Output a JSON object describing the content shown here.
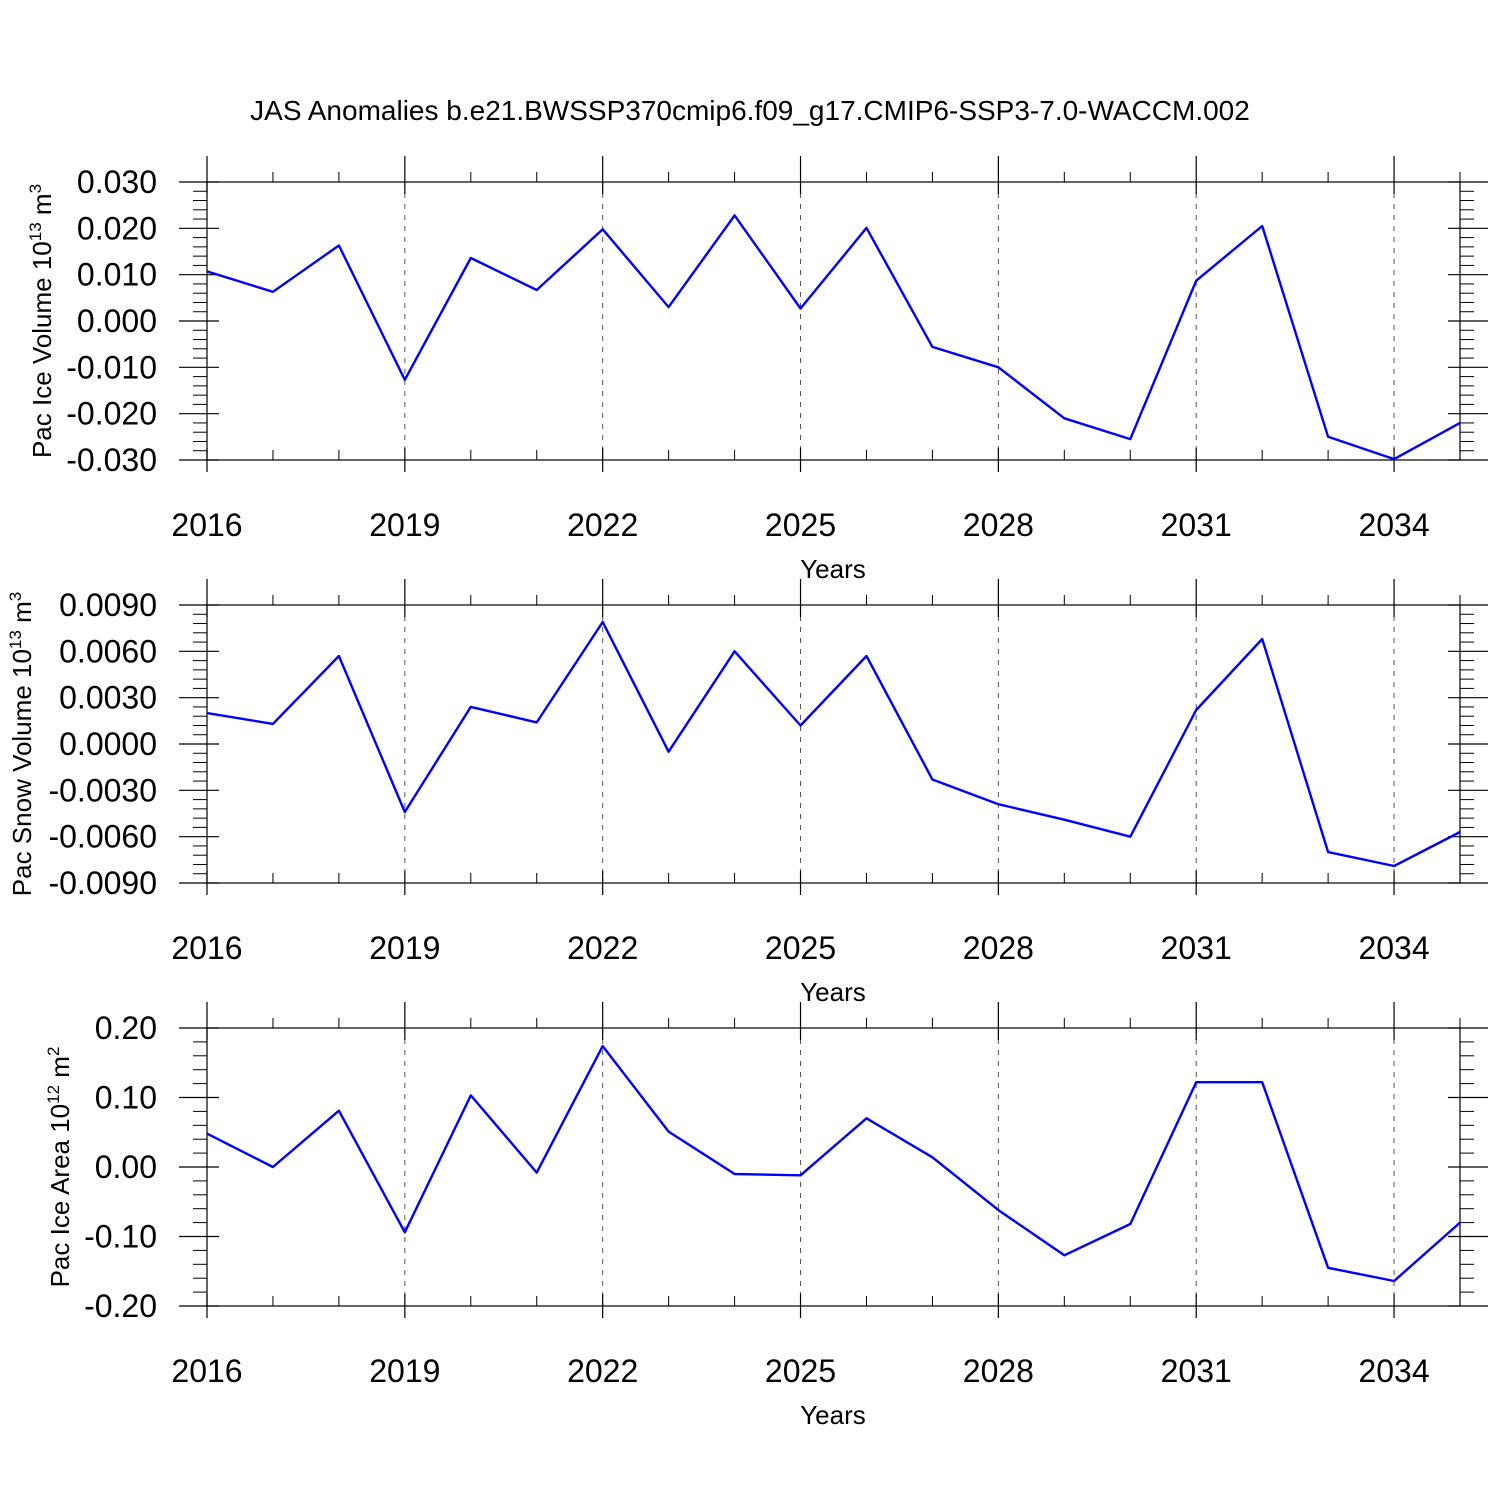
{
  "title": "JAS Anomalies b.e21.BWSSP370cmip6.f09_g17.CMIP6-SSP3-7.0-WACCM.002",
  "line_color": "#0000ff",
  "chart_data": [
    {
      "type": "line",
      "ylabel_main": "Pac Ice Volume 10",
      "ylabel_exp": "13",
      "ylabel_unit": "m",
      "ylabel_unit_exp": "3",
      "xlabel": "Years",
      "xlim": [
        2016,
        2035
      ],
      "ylim": [
        -0.03,
        0.03
      ],
      "grid": "dashed vertical at labeled years",
      "yticks": [
        -0.03,
        -0.02,
        -0.01,
        0.0,
        0.01,
        0.02,
        0.03
      ],
      "ytick_labels": [
        "-0.030",
        "-0.020",
        "-0.010",
        "0.000",
        "0.010",
        "0.020",
        "0.030"
      ],
      "xticks": [
        2016,
        2019,
        2022,
        2025,
        2028,
        2031,
        2034
      ],
      "xtick_labels": [
        "2016",
        "2019",
        "2022",
        "2025",
        "2028",
        "2031",
        "2034"
      ],
      "x": [
        2016,
        2017,
        2018,
        2019,
        2020,
        2021,
        2022,
        2023,
        2024,
        2025,
        2026,
        2027,
        2028,
        2029,
        2030,
        2031,
        2032,
        2033,
        2034,
        2035
      ],
      "values": [
        0.0107,
        0.0063,
        0.0163,
        -0.0127,
        0.0136,
        0.0067,
        0.0198,
        0.003,
        0.0228,
        0.0027,
        0.0201,
        -0.0056,
        -0.01,
        -0.021,
        -0.0255,
        0.0087,
        0.0205,
        -0.025,
        -0.0298,
        -0.022
      ]
    },
    {
      "type": "line",
      "ylabel_main": "Pac Snow Volume 10",
      "ylabel_exp": "13",
      "ylabel_unit": "m",
      "ylabel_unit_exp": "3",
      "xlabel": "Years",
      "xlim": [
        2016,
        2035
      ],
      "ylim": [
        -0.009,
        0.009
      ],
      "grid": "dashed vertical at labeled years",
      "yticks": [
        -0.009,
        -0.006,
        -0.003,
        0.0,
        0.003,
        0.006,
        0.009
      ],
      "ytick_labels": [
        "-0.0090",
        "-0.0060",
        "-0.0030",
        "0.0000",
        "0.0030",
        "0.0060",
        "0.0090"
      ],
      "xticks": [
        2016,
        2019,
        2022,
        2025,
        2028,
        2031,
        2034
      ],
      "xtick_labels": [
        "2016",
        "2019",
        "2022",
        "2025",
        "2028",
        "2031",
        "2034"
      ],
      "x": [
        2016,
        2017,
        2018,
        2019,
        2020,
        2021,
        2022,
        2023,
        2024,
        2025,
        2026,
        2027,
        2028,
        2029,
        2030,
        2031,
        2032,
        2033,
        2034,
        2035
      ],
      "values": [
        0.002,
        0.0013,
        0.0057,
        -0.0044,
        0.0024,
        0.0014,
        0.0079,
        -0.0005,
        0.006,
        0.0012,
        0.0057,
        -0.0023,
        -0.0039,
        -0.0049,
        -0.006,
        0.0022,
        0.0068,
        -0.007,
        -0.0079,
        -0.0057
      ]
    },
    {
      "type": "line",
      "ylabel_main": "Pac Ice Area 10",
      "ylabel_exp": "12",
      "ylabel_unit": "m",
      "ylabel_unit_exp": "2",
      "xlabel": "Years",
      "xlim": [
        2016,
        2035
      ],
      "ylim": [
        -0.2,
        0.2
      ],
      "grid": "dashed vertical at labeled years",
      "yticks": [
        -0.2,
        -0.1,
        0.0,
        0.1,
        0.2
      ],
      "ytick_labels": [
        "-0.20",
        "-0.10",
        "0.00",
        "0.10",
        "0.20"
      ],
      "xticks": [
        2016,
        2019,
        2022,
        2025,
        2028,
        2031,
        2034
      ],
      "xtick_labels": [
        "2016",
        "2019",
        "2022",
        "2025",
        "2028",
        "2031",
        "2034"
      ],
      "x": [
        2016,
        2017,
        2018,
        2019,
        2020,
        2021,
        2022,
        2023,
        2024,
        2025,
        2026,
        2027,
        2028,
        2029,
        2030,
        2031,
        2032,
        2033,
        2034,
        2035
      ],
      "values": [
        0.048,
        0.0,
        0.081,
        -0.094,
        0.103,
        -0.008,
        0.174,
        0.051,
        -0.01,
        -0.012,
        0.07,
        0.014,
        -0.062,
        -0.127,
        -0.082,
        0.122,
        0.122,
        -0.145,
        -0.164,
        -0.08
      ]
    }
  ]
}
